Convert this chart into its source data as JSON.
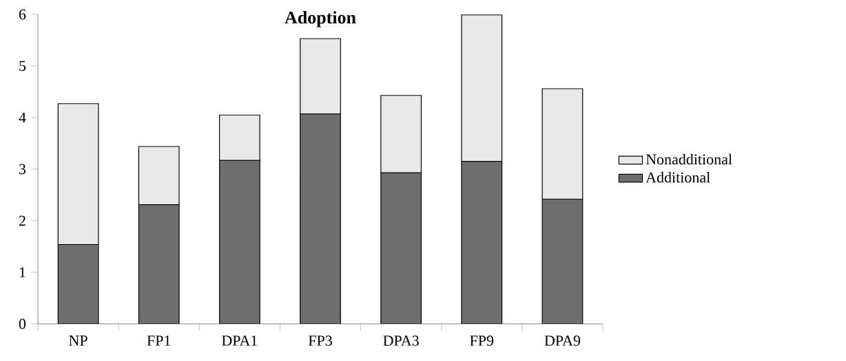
{
  "chart_data": {
    "type": "bar",
    "title": "Adoption",
    "stacked": true,
    "legend": "right",
    "categories": [
      "NP",
      "FP1",
      "DPA1",
      "FP3",
      "DPA3",
      "FP9",
      "DPA9"
    ],
    "series": [
      {
        "name": "Additional",
        "color": "#6e6e6e",
        "values": [
          1.54,
          2.31,
          3.17,
          4.07,
          2.93,
          3.15,
          2.42
        ]
      },
      {
        "name": "Nonadditional",
        "color": "#e8e8e8",
        "values": [
          2.73,
          1.13,
          0.88,
          1.46,
          1.5,
          2.84,
          2.14
        ]
      }
    ],
    "ylim": [
      0,
      6
    ],
    "yticks": [
      0,
      1,
      2,
      3,
      4,
      5,
      6
    ]
  }
}
